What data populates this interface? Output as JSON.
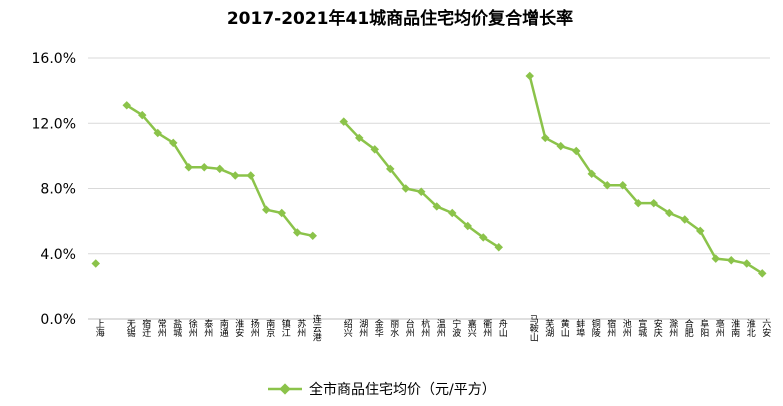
{
  "chart_data": {
    "type": "line",
    "title": "2017-2021年41城商品住宅均价复合增长率",
    "xlabel": "",
    "ylabel": "",
    "ylim": [
      0,
      0.16
    ],
    "yticks": [
      "0.0%",
      "4.0%",
      "8.0%",
      "12.0%",
      "16.0%"
    ],
    "grid": true,
    "legend_position": "bottom",
    "color": "#8bc34a",
    "categories": [
      "上海",
      "",
      "无锡",
      "宿迁",
      "常州",
      "盐城",
      "徐州",
      "泰州",
      "南通",
      "淮安",
      "扬州",
      "南京",
      "镇江",
      "苏州",
      "连云港",
      "",
      "绍兴",
      "湖州",
      "金华",
      "丽水",
      "台州",
      "杭州",
      "温州",
      "宁波",
      "嘉兴",
      "衢州",
      "舟山",
      "",
      "马鞍山",
      "芜湖",
      "黄山",
      "蚌埠",
      "铜陵",
      "宿州",
      "池州",
      "宣城",
      "安庆",
      "滁州",
      "合肥",
      "阜阳",
      "亳州",
      "淮南",
      "淮北",
      "六安"
    ],
    "series": [
      {
        "name": "全市商品住宅均价（元/平方）",
        "values": [
          0.034,
          null,
          0.131,
          0.125,
          0.114,
          0.108,
          0.093,
          0.093,
          0.092,
          0.088,
          0.088,
          0.067,
          0.065,
          0.053,
          0.051,
          null,
          0.121,
          0.111,
          0.104,
          0.092,
          0.08,
          0.078,
          0.069,
          0.065,
          0.057,
          0.05,
          0.044,
          null,
          0.149,
          0.111,
          0.106,
          0.103,
          0.089,
          0.082,
          0.082,
          0.071,
          0.071,
          0.065,
          0.061,
          0.054,
          0.037,
          0.036,
          0.034,
          0.028
        ]
      }
    ]
  }
}
